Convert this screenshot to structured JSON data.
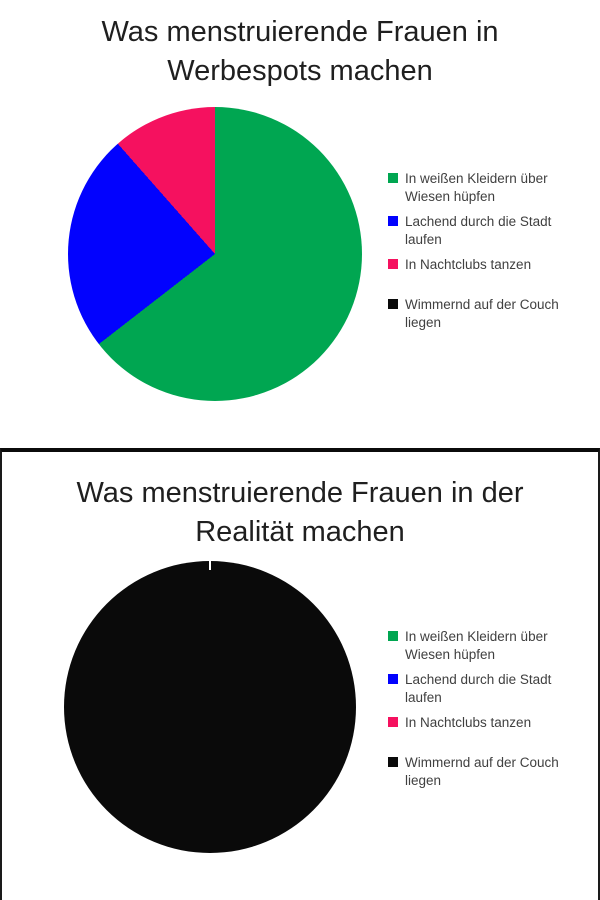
{
  "page": {
    "background": "#ffffff",
    "divider_color": "#0b0b0b"
  },
  "legend": {
    "position": "right",
    "text_color": "#404040",
    "items": [
      {
        "label": "In weißen Kleidern über Wiesen hüpfen",
        "lines": [
          "In weißen Kleidern über",
          "Wiesen hüpfen"
        ],
        "color": "#00A651",
        "extra_gap_above": false
      },
      {
        "label": "Lachend durch die Stadt laufen",
        "lines": [
          "Lachend durch die Stadt",
          "laufen"
        ],
        "color": "#0202FE",
        "extra_gap_above": false
      },
      {
        "label": "In Nachtclubs tanzen",
        "lines": [
          "In Nachtclubs tanzen"
        ],
        "color": "#F5115F",
        "extra_gap_above": false
      },
      {
        "label": "Wimmernd auf der Couch liegen",
        "lines": [
          "Wimmernd auf der Couch",
          "liegen"
        ],
        "color": "#0A0A0A",
        "extra_gap_above": true
      }
    ]
  },
  "chart_data": [
    {
      "type": "pie",
      "title": "Was menstruierende Frauen in Werbespots machen",
      "title_lines": [
        "Was menstruierende Frauen in",
        "Werbespots machen"
      ],
      "categories": [
        "In weißen Kleidern über Wiesen hüpfen",
        "Lachend durch die Stadt laufen",
        "In Nachtclubs tanzen",
        "Wimmernd auf der Couch liegen"
      ],
      "values": [
        64.5,
        24,
        11.5,
        0
      ],
      "values_unit": "percent (estimated from slice angles)",
      "colors": [
        "#00A651",
        "#0202FE",
        "#F5115F",
        "#0A0A0A"
      ],
      "start_angle_deg": 0,
      "direction": "clockwise",
      "legend_position": "right",
      "border": false
    },
    {
      "type": "pie",
      "title": "Was menstruierende Frauen in der Realität machen",
      "title_lines": [
        "Was menstruierende Frauen in der",
        "Realität machen"
      ],
      "categories": [
        "In weißen Kleidern über Wiesen hüpfen",
        "Lachend durch die Stadt laufen",
        "In Nachtclubs tanzen",
        "Wimmernd auf der Couch liegen"
      ],
      "values": [
        0,
        0,
        0,
        100
      ],
      "values_unit": "percent (estimated from slice angles)",
      "colors": [
        "#00A651",
        "#0202FE",
        "#F5115F",
        "#0A0A0A"
      ],
      "start_angle_deg": 0,
      "direction": "clockwise",
      "legend_position": "right",
      "border": true,
      "notch_at_top": true
    }
  ]
}
